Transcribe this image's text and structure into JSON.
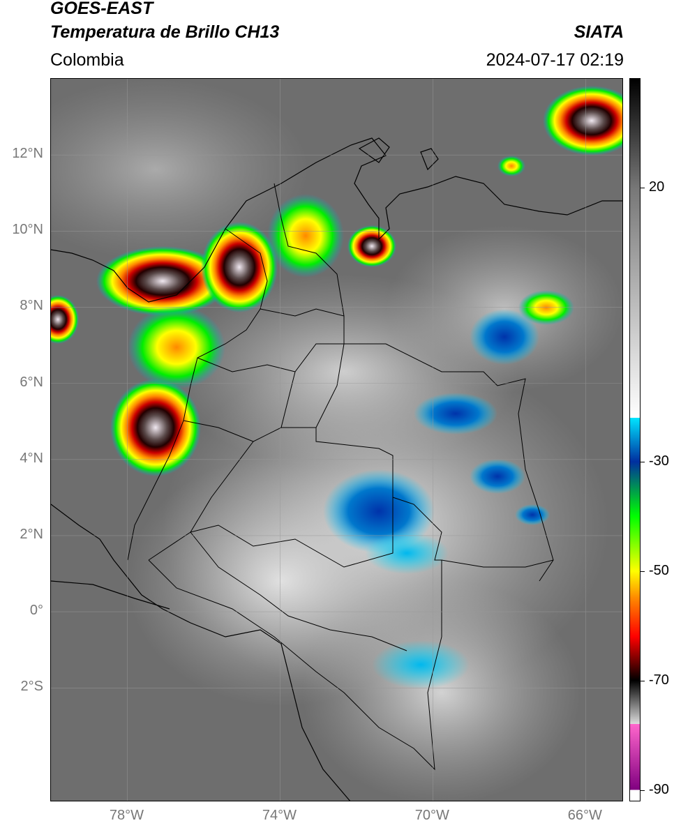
{
  "header": {
    "satellite": "GOES-EAST",
    "product": "Temperatura de Brillo CH13",
    "region": "Colombia",
    "organization": "SIATA",
    "timestamp": "2024-07-17 02:19"
  },
  "map": {
    "lon_range": [
      -80,
      -65
    ],
    "lat_range": [
      -5,
      14
    ],
    "lat_labels": [
      "12°N",
      "10°N",
      "8°N",
      "6°N",
      "4°N",
      "2°N",
      "0°",
      "2°S"
    ],
    "lat_values": [
      12,
      10,
      8,
      6,
      4,
      2,
      0,
      -2
    ],
    "lon_labels": [
      "78°W",
      "74°W",
      "70°W",
      "66°W"
    ],
    "lon_values": [
      -78,
      -74,
      -70,
      -66
    ],
    "background_color": "#6e6e6e",
    "coastline_color": "#000000"
  },
  "colorbar": {
    "range": [
      -92,
      40
    ],
    "tick_labels": [
      "20",
      "-30",
      "-50",
      "-70",
      "-90"
    ],
    "tick_values": [
      20,
      -30,
      -50,
      -70,
      -90
    ],
    "stops": [
      {
        "v": 40,
        "c": "#000000"
      },
      {
        "v": 20,
        "c": "#777777"
      },
      {
        "v": -22,
        "c": "#ffffff"
      },
      {
        "v": -22,
        "c": "#00e5ff"
      },
      {
        "v": -30,
        "c": "#002fa0"
      },
      {
        "v": -40,
        "c": "#00ff00"
      },
      {
        "v": -50,
        "c": "#ffff00"
      },
      {
        "v": -55,
        "c": "#ff8800"
      },
      {
        "v": -62,
        "c": "#ff0000"
      },
      {
        "v": -70,
        "c": "#000000"
      },
      {
        "v": -78,
        "c": "#dddddd"
      },
      {
        "v": -78,
        "c": "#ff66cc"
      },
      {
        "v": -90,
        "c": "#800080"
      },
      {
        "v": -90,
        "c": "#ffffff"
      }
    ]
  }
}
